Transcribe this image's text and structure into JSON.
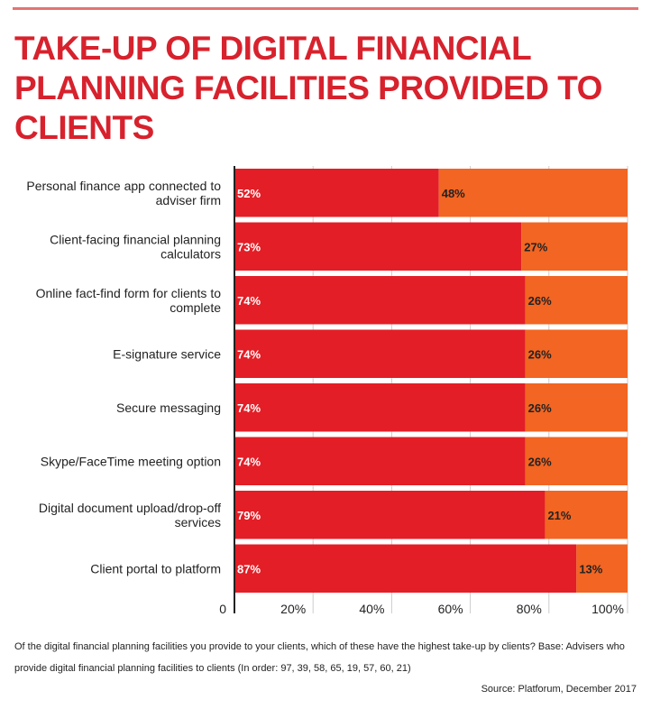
{
  "title_lines": [
    "TAKE-UP OF DIGITAL FINANCIAL",
    "PLANNING FACILITIES PROVIDED TO",
    "CLIENTS"
  ],
  "colors": {
    "title": "#d7222d",
    "series_a": "#e31e26",
    "series_b": "#f26522",
    "axis": "#222222"
  },
  "chart_data": {
    "type": "bar",
    "orientation": "horizontal",
    "stacked": true,
    "title": "TAKE-UP OF DIGITAL FINANCIAL PLANNING FACILITIES PROVIDED TO CLIENTS",
    "categories": [
      [
        "Personal finance app connected to",
        "adviser firm"
      ],
      [
        "Client-facing financial planning",
        "calculators"
      ],
      [
        "Online fact-find form for clients to",
        "complete"
      ],
      [
        "E-signature service"
      ],
      [
        "Secure messaging"
      ],
      [
        "Skype/FaceTime meeting option"
      ],
      [
        "Digital document upload/drop-off",
        "services"
      ],
      [
        "Client portal to platform"
      ]
    ],
    "series": [
      {
        "values": [
          52,
          73,
          74,
          74,
          74,
          74,
          79,
          87
        ],
        "color": "#e31e26"
      },
      {
        "values": [
          48,
          27,
          26,
          26,
          26,
          26,
          21,
          13
        ],
        "color": "#f26522"
      }
    ],
    "value_labels_a": [
      "52%",
      "73%",
      "74%",
      "74%",
      "74%",
      "74%",
      "79%",
      "87%"
    ],
    "value_labels_b": [
      "48%",
      "27%",
      "26%",
      "26%",
      "26%",
      "26%",
      "21%",
      "13%"
    ],
    "xlim": [
      0,
      100
    ],
    "x_ticks": [
      0,
      20,
      40,
      60,
      80,
      100
    ],
    "x_tick_labels": [
      "0",
      "20%",
      "40%",
      "60%",
      "80%",
      "100%"
    ],
    "grid": true
  },
  "footnote": "Of the digital financial planning facilities you provide to your clients, which of these have the highest take-up by clients? Base: Advisers who provide digital financial planning facilities to clients (In order: 97, 39, 58, 65, 19, 57, 60, 21)",
  "source": "Source: Platforum, December 2017"
}
